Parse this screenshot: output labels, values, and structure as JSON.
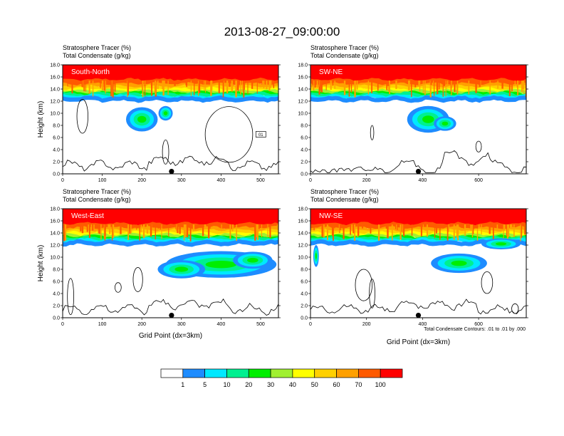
{
  "title": "2013-08-27_09:00:00",
  "colorbar": {
    "levels": [
      "1",
      "5",
      "10",
      "20",
      "30",
      "40",
      "50",
      "60",
      "70",
      "100"
    ],
    "colors": [
      "#ffffff",
      "#1e8cff",
      "#00e8ff",
      "#00f090",
      "#00ee00",
      "#a0f030",
      "#ffff00",
      "#ffd000",
      "#ffa000",
      "#ff5a00",
      "#ff0000"
    ]
  },
  "footnote": "Total Condensate Contours: .01 to .01 by .000",
  "chart_data": [
    {
      "type": "heatmap",
      "panel_label": "South-North",
      "header_line1": "Stratosphere Tracer   (%)",
      "header_line2": "Total Condensate   (g/kg)",
      "ylabel": "Height (km)",
      "xlabel": "",
      "xlim": [
        0,
        545
      ],
      "ylim": [
        0,
        18
      ],
      "xticks": [
        "0",
        "100",
        "200",
        "300",
        "400",
        "500"
      ],
      "yticks": [
        "0.0",
        "2.0",
        "4.0",
        "6.0",
        "8.0",
        "10.0",
        "12.0",
        "14.0",
        "16.0",
        "18.0"
      ],
      "marker_x": 275,
      "inset_label": "01"
    },
    {
      "type": "heatmap",
      "panel_label": "SW-NE",
      "header_line1": "Stratosphere Tracer   (%)",
      "header_line2": "Total Condensate   (g/kg)",
      "ylabel": "",
      "xlabel": "",
      "xlim": [
        0,
        770
      ],
      "ylim": [
        0,
        18
      ],
      "xticks": [
        "0",
        "200",
        "400",
        "600"
      ],
      "yticks": [
        "0.0",
        "2.0",
        "4.0",
        "6.0",
        "8.0",
        "10.0",
        "12.0",
        "14.0",
        "16.0",
        "18.0"
      ],
      "marker_x": 385
    },
    {
      "type": "heatmap",
      "panel_label": "West-East",
      "header_line1": "Stratosphere Tracer   (%)",
      "header_line2": "Total Condensate   (g/kg)",
      "ylabel": "Height (km)",
      "xlabel": "Grid Point (dx=3km)",
      "xlim": [
        0,
        545
      ],
      "ylim": [
        0,
        18
      ],
      "xticks": [
        "0",
        "100",
        "200",
        "300",
        "400",
        "500"
      ],
      "yticks": [
        "0.0",
        "2.0",
        "4.0",
        "6.0",
        "8.0",
        "10.0",
        "12.0",
        "14.0",
        "16.0",
        "18.0"
      ],
      "marker_x": 275
    },
    {
      "type": "heatmap",
      "panel_label": "NW-SE",
      "header_line1": "Stratosphere Tracer   (%)",
      "header_line2": "Total Condensate   (g/kg)",
      "ylabel": "",
      "xlabel": "Grid Point (dx=3km)",
      "xlim": [
        0,
        770
      ],
      "ylim": [
        0,
        18
      ],
      "xticks": [
        "0",
        "200",
        "400",
        "600"
      ],
      "yticks": [
        "0.0",
        "2.0",
        "4.0",
        "6.0",
        "8.0",
        "10.0",
        "12.0",
        "14.0",
        "16.0",
        "18.0"
      ],
      "marker_x": 385
    }
  ]
}
